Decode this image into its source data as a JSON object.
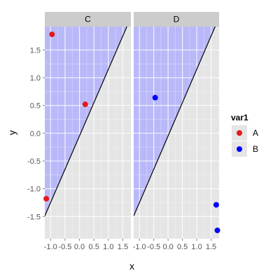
{
  "chart_data": {
    "type": "scatter",
    "xlabel": "x",
    "ylabel": "y",
    "xlim": [
      -1.2,
      1.78
    ],
    "ylim": [
      -1.9,
      1.92
    ],
    "x_ticks": [
      -1.0,
      -0.5,
      0.0,
      0.5,
      1.0,
      1.5
    ],
    "x_tick_labels": [
      "-1.0",
      "-0.5",
      "0.0",
      "0.5",
      "1.0",
      "1.5"
    ],
    "y_ticks": [
      -1.5,
      -1.0,
      -0.5,
      0.0,
      0.5,
      1.0,
      1.5
    ],
    "y_tick_labels": [
      "-1.5",
      "-1.0",
      "-0.5",
      "0.0",
      "0.5",
      "1.0",
      "1.5"
    ],
    "grid": true,
    "panel_background": "#e5e5e5",
    "shading_color": "#aaaaff",
    "line": {
      "slope": 1.2,
      "intercept": -0.05,
      "color": "#000000"
    },
    "legend": {
      "title": "var1",
      "position": "right",
      "entries": [
        {
          "label": "A",
          "color": "#e31a1c"
        },
        {
          "label": "B",
          "color": "#0000ff"
        }
      ]
    },
    "facets": [
      {
        "label": "C",
        "points": [
          {
            "x": -1.15,
            "y": -1.18,
            "group": "A"
          },
          {
            "x": -0.95,
            "y": 1.78,
            "group": "A"
          },
          {
            "x": 0.2,
            "y": 0.52,
            "group": "A"
          }
        ]
      },
      {
        "label": "D",
        "points": [
          {
            "x": -0.45,
            "y": 0.64,
            "group": "B"
          },
          {
            "x": 1.68,
            "y": -1.29,
            "group": "B"
          },
          {
            "x": 1.72,
            "y": -1.75,
            "group": "B"
          }
        ]
      }
    ]
  }
}
